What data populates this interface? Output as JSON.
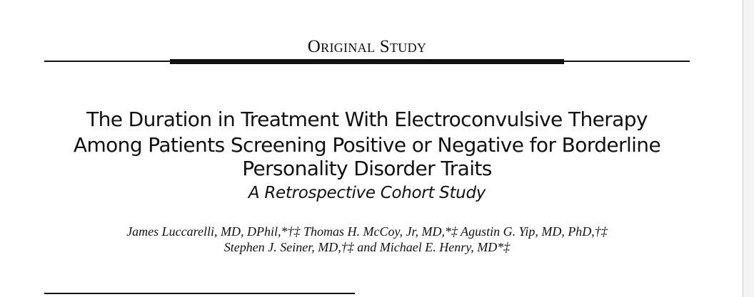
{
  "header": {
    "section": "Original Study"
  },
  "title": {
    "lines": [
      "The Duration in Treatment With Electroconvulsive Therapy",
      "Among Patients Screening Positive or Negative for Borderline",
      "Personality Disorder Traits"
    ],
    "subtitle": "A Retrospective Cohort Study"
  },
  "authors": {
    "lines": [
      "James Luccarelli, MD, DPhil,*†‡ Thomas H. McCoy, Jr, MD,*‡ Agustin G. Yip, MD, PhD,†‡",
      "Stephen J. Seiner, MD,†‡ and Michael E. Henry, MD*‡"
    ]
  }
}
